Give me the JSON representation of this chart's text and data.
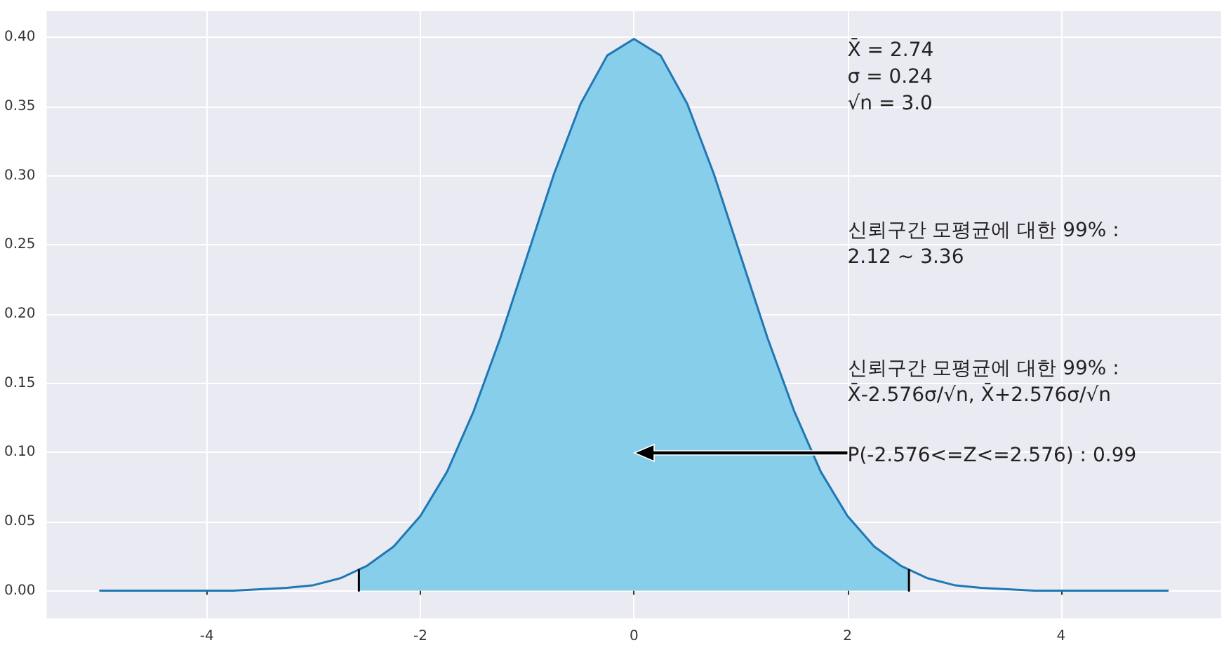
{
  "chart_data": {
    "type": "line",
    "xlim": [
      -5.5,
      5.5
    ],
    "ylim": [
      -0.02,
      0.419
    ],
    "xticks": [
      -4,
      -2,
      0,
      2,
      4
    ],
    "yticks": [
      {
        "value": 0,
        "label": "0.00"
      },
      {
        "value": 0.05,
        "label": "0.05"
      },
      {
        "value": 0.1,
        "label": "0.10"
      },
      {
        "value": 0.15,
        "label": "0.15"
      },
      {
        "value": 0.2,
        "label": "0.20"
      },
      {
        "value": 0.25,
        "label": "0.25"
      },
      {
        "value": 0.3,
        "label": "0.30"
      },
      {
        "value": 0.35,
        "label": "0.35"
      },
      {
        "value": 0.4,
        "label": "0.40"
      }
    ],
    "grid": true,
    "marker": "none",
    "line_style": "solid",
    "series": [
      {
        "type": "area",
        "color": "#87ceeb",
        "x": [
          -2.576,
          -2.5,
          -2.25,
          -2,
          -1.75,
          -1.5,
          -1.25,
          -1,
          -0.75,
          -0.5,
          -0.25,
          0,
          0.25,
          0.5,
          0.75,
          1,
          1.25,
          1.5,
          1.75,
          2,
          2.25,
          2.5,
          2.576
        ],
        "values": [
          0.015,
          0.018,
          0.032,
          0.054,
          0.086,
          0.13,
          0.183,
          0.242,
          0.301,
          0.352,
          0.387,
          0.399,
          0.387,
          0.352,
          0.301,
          0.242,
          0.183,
          0.13,
          0.086,
          0.054,
          0.032,
          0.018,
          0.015
        ]
      },
      {
        "color": "#1f77b4",
        "x": [
          -5,
          -4.75,
          -4.5,
          -4.25,
          -4,
          -3.75,
          -3.5,
          -3.25,
          -3,
          -2.75,
          -2.5,
          -2.25,
          -2,
          -1.75,
          -1.5,
          -1.25,
          -1,
          -0.75,
          -0.5,
          -0.25,
          0,
          0.25,
          0.5,
          0.75,
          1,
          1.25,
          1.5,
          1.75,
          2,
          2.25,
          2.5,
          2.75,
          3,
          3.25,
          3.5,
          3.75,
          4,
          4.25,
          4.5,
          4.75,
          5
        ],
        "values": [
          0,
          0,
          0,
          0,
          0,
          0,
          0.001,
          0.002,
          0.004,
          0.009,
          0.018,
          0.032,
          0.054,
          0.086,
          0.13,
          0.183,
          0.242,
          0.301,
          0.352,
          0.387,
          0.399,
          0.387,
          0.352,
          0.301,
          0.242,
          0.183,
          0.13,
          0.086,
          0.054,
          0.032,
          0.018,
          0.009,
          0.004,
          0.002,
          0.001,
          0,
          0,
          0,
          0,
          0,
          0
        ]
      },
      {
        "type": "line",
        "color": "#000000",
        "x": [
          -2.576,
          -2.576
        ],
        "values": [
          0,
          0.015
        ]
      },
      {
        "type": "line",
        "color": "#000000",
        "x": [
          2.576,
          2.576
        ],
        "values": [
          0,
          0.015
        ]
      }
    ],
    "annotations": [
      "X̄ = 2.74\nσ = 0.24\n√n = 3.0",
      "신뢰구간 모평균에 대한 99% :\n2.12 ~ 3.36",
      "신뢰구간 모평균에 대한 99% :\nX̄-2.576σ/√n, X̄+2.576σ/√n",
      "P(-2.576<=Z<=2.576) : 0.99"
    ]
  }
}
